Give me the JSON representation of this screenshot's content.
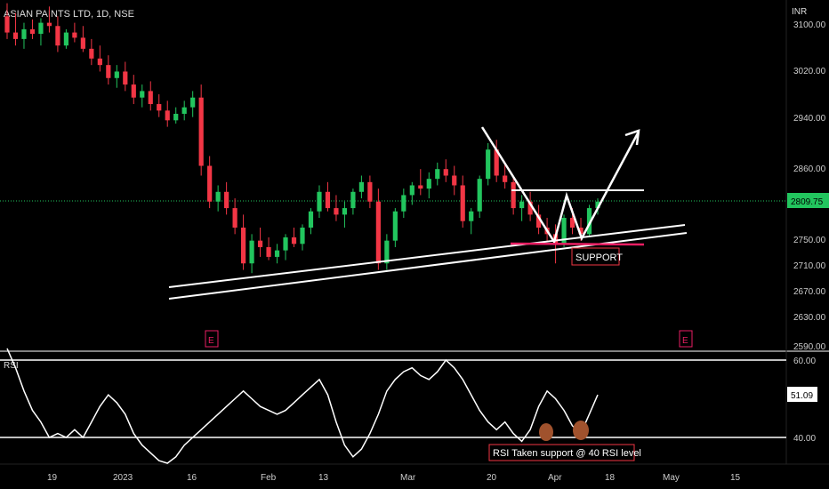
{
  "header": {
    "symbol": "ASIAN PAINTS LTD, 1D, NSE",
    "currency": "INR"
  },
  "price_axis": {
    "ticks": [
      "3100.00",
      "3020.00",
      "2940.00",
      "2860.00",
      "2750.00",
      "2710.00",
      "2670.00",
      "2630.00",
      "2590.00"
    ],
    "last_price": "2809.75"
  },
  "rsi_axis": {
    "ticks": [
      "60.00",
      "40.00"
    ],
    "last_value": "51.09",
    "title": "RSI"
  },
  "time_axis": {
    "ticks": [
      "19",
      "2023",
      "16",
      "Feb",
      "13",
      "Mar",
      "20",
      "Apr",
      "18",
      "May",
      "15"
    ]
  },
  "annotations": {
    "support_label": "SUPPORT",
    "rsi_note": "RSI Taken support @ 40 RSI level"
  },
  "earnings_markers": [
    "E",
    "E"
  ],
  "colors": {
    "up": "#22c55e",
    "down": "#f23645",
    "line": "#ffffff",
    "support": "#e91e63",
    "grid": "#1a1a1a"
  },
  "chart_data": [
    {
      "type": "candlestick",
      "title": "ASIAN PAINTS LTD, 1D, NSE",
      "ylim": [
        2580,
        3120
      ],
      "last_price": 2809.75,
      "series": [
        {
          "name": "daily",
          "candles": [
            [
              3095,
              3115,
              3060,
              3070
            ],
            [
              3070,
              3100,
              3050,
              3060
            ],
            [
              3060,
              3085,
              3045,
              3075
            ],
            [
              3075,
              3090,
              3060,
              3068
            ],
            [
              3068,
              3092,
              3050,
              3085
            ],
            [
              3085,
              3110,
              3070,
              3080
            ],
            [
              3080,
              3095,
              3040,
              3050
            ],
            [
              3050,
              3075,
              3045,
              3070
            ],
            [
              3070,
              3085,
              3055,
              3062
            ],
            [
              3062,
              3080,
              3040,
              3045
            ],
            [
              3045,
              3060,
              3020,
              3030
            ],
            [
              3030,
              3050,
              3010,
              3020
            ],
            [
              3020,
              3035,
              2990,
              3000
            ],
            [
              3000,
              3020,
              2985,
              3010
            ],
            [
              3010,
              3025,
              2980,
              2990
            ],
            [
              2990,
              3005,
              2960,
              2970
            ],
            [
              2970,
              2990,
              2955,
              2980
            ],
            [
              2980,
              2995,
              2950,
              2960
            ],
            [
              2960,
              2975,
              2940,
              2950
            ],
            [
              2950,
              2965,
              2925,
              2935
            ],
            [
              2935,
              2955,
              2930,
              2945
            ],
            [
              2945,
              2965,
              2935,
              2955
            ],
            [
              2955,
              2980,
              2940,
              2970
            ],
            [
              2970,
              2990,
              2850,
              2865
            ],
            [
              2865,
              2880,
              2800,
              2810
            ],
            [
              2810,
              2835,
              2795,
              2825
            ],
            [
              2825,
              2840,
              2790,
              2800
            ],
            [
              2800,
              2815,
              2760,
              2770
            ],
            [
              2770,
              2790,
              2705,
              2715
            ],
            [
              2715,
              2760,
              2700,
              2750
            ],
            [
              2750,
              2770,
              2725,
              2740
            ],
            [
              2740,
              2755,
              2720,
              2725
            ],
            [
              2725,
              2745,
              2715,
              2735
            ],
            [
              2735,
              2760,
              2720,
              2755
            ],
            [
              2755,
              2770,
              2740,
              2745
            ],
            [
              2745,
              2775,
              2735,
              2770
            ],
            [
              2770,
              2800,
              2760,
              2795
            ],
            [
              2795,
              2835,
              2785,
              2825
            ],
            [
              2825,
              2840,
              2795,
              2800
            ],
            [
              2800,
              2820,
              2780,
              2790
            ],
            [
              2790,
              2810,
              2770,
              2800
            ],
            [
              2800,
              2830,
              2790,
              2825
            ],
            [
              2825,
              2850,
              2815,
              2840
            ],
            [
              2840,
              2850,
              2800,
              2810
            ],
            [
              2810,
              2830,
              2705,
              2715
            ],
            [
              2715,
              2760,
              2705,
              2750
            ],
            [
              2750,
              2800,
              2740,
              2795
            ],
            [
              2795,
              2830,
              2785,
              2820
            ],
            [
              2820,
              2840,
              2805,
              2835
            ],
            [
              2835,
              2860,
              2820,
              2830
            ],
            [
              2830,
              2855,
              2815,
              2845
            ],
            [
              2845,
              2870,
              2835,
              2860
            ],
            [
              2860,
              2875,
              2840,
              2850
            ],
            [
              2850,
              2865,
              2820,
              2835
            ],
            [
              2835,
              2850,
              2770,
              2780
            ],
            [
              2780,
              2800,
              2760,
              2795
            ],
            [
              2795,
              2850,
              2785,
              2845
            ],
            [
              2845,
              2900,
              2835,
              2890
            ],
            [
              2890,
              2905,
              2840,
              2850
            ],
            [
              2850,
              2870,
              2830,
              2840
            ],
            [
              2840,
              2850,
              2790,
              2800
            ],
            [
              2800,
              2820,
              2780,
              2810
            ],
            [
              2810,
              2825,
              2780,
              2790
            ],
            [
              2790,
              2805,
              2760,
              2770
            ],
            [
              2770,
              2785,
              2750,
              2760
            ],
            [
              2760,
              2775,
              2715,
              2745
            ],
            [
              2745,
              2790,
              2740,
              2785
            ],
            [
              2785,
              2800,
              2760,
              2770
            ],
            [
              2770,
              2785,
              2750,
              2760
            ],
            [
              2760,
              2805,
              2755,
              2800
            ],
            [
              2800,
              2815,
              2790,
              2810
            ]
          ]
        }
      ]
    },
    {
      "type": "line",
      "title": "RSI",
      "ylim": [
        33,
        63
      ],
      "levels": [
        60,
        40
      ],
      "series": [
        {
          "name": "RSI",
          "values": [
            63,
            58,
            52,
            47,
            44,
            40,
            41,
            40,
            42,
            40,
            44,
            48,
            51,
            49,
            46,
            41,
            38,
            36,
            34,
            33,
            35,
            38,
            40,
            42,
            44,
            46,
            48,
            50,
            52,
            50,
            48,
            47,
            46,
            47,
            49,
            51,
            53,
            55,
            51,
            44,
            38,
            35,
            37,
            41,
            46,
            52,
            55,
            57,
            58,
            56,
            55,
            57,
            60,
            58,
            55,
            51,
            47,
            44,
            42,
            44,
            41,
            39,
            42,
            48,
            52,
            50,
            47,
            43,
            41,
            46,
            51
          ]
        }
      ]
    }
  ]
}
